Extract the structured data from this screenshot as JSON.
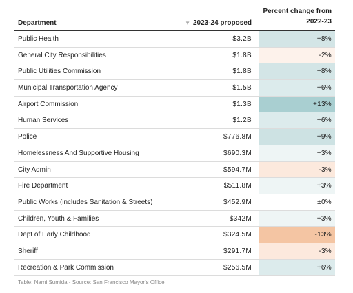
{
  "table": {
    "header": {
      "department": "Department",
      "proposed": "2023-24 proposed",
      "change": "Percent change from 2022-23"
    },
    "rows": [
      {
        "department": "Public Health",
        "proposed": "$3.2B",
        "change": "+8%",
        "color": "#d3e5e6"
      },
      {
        "department": "General City Responsibilities",
        "proposed": "$1.8B",
        "change": "-2%",
        "color": "#fdf2eb"
      },
      {
        "department": "Public Utilities Commission",
        "proposed": "$1.8B",
        "change": "+8%",
        "color": "#d3e5e6"
      },
      {
        "department": "Municipal Transportation Agency",
        "proposed": "$1.5B",
        "change": "+6%",
        "color": "#dcebec"
      },
      {
        "department": "Airport Commission",
        "proposed": "$1.3B",
        "change": "+13%",
        "color": "#a9cfd1"
      },
      {
        "department": "Human Services",
        "proposed": "$1.2B",
        "change": "+6%",
        "color": "#dcebec"
      },
      {
        "department": "Police",
        "proposed": "$776.8M",
        "change": "+9%",
        "color": "#cde2e3"
      },
      {
        "department": "Homelessness And Supportive Housing",
        "proposed": "$690.3M",
        "change": "+3%",
        "color": "#eef5f5"
      },
      {
        "department": "City Admin",
        "proposed": "$594.7M",
        "change": "-3%",
        "color": "#fce9dd"
      },
      {
        "department": "Fire Department",
        "proposed": "$511.8M",
        "change": "+3%",
        "color": "#eef5f5"
      },
      {
        "department": "Public Works (includes Sanitation & Streets)",
        "proposed": "$452.9M",
        "change": "±0%",
        "color": "#ffffff"
      },
      {
        "department": "Children, Youth & Families",
        "proposed": "$342M",
        "change": "+3%",
        "color": "#eef5f5"
      },
      {
        "department": "Dept of Early Childhood",
        "proposed": "$324.5M",
        "change": "-13%",
        "color": "#f4c5a3"
      },
      {
        "department": "Sheriff",
        "proposed": "$291.7M",
        "change": "-3%",
        "color": "#fce9dd"
      },
      {
        "department": "Recreation & Park Commission",
        "proposed": "$256.5M",
        "change": "+6%",
        "color": "#dcebec"
      }
    ]
  },
  "footer": "Table: Nami Sumida - Source: San Francisco Mayor's Office"
}
